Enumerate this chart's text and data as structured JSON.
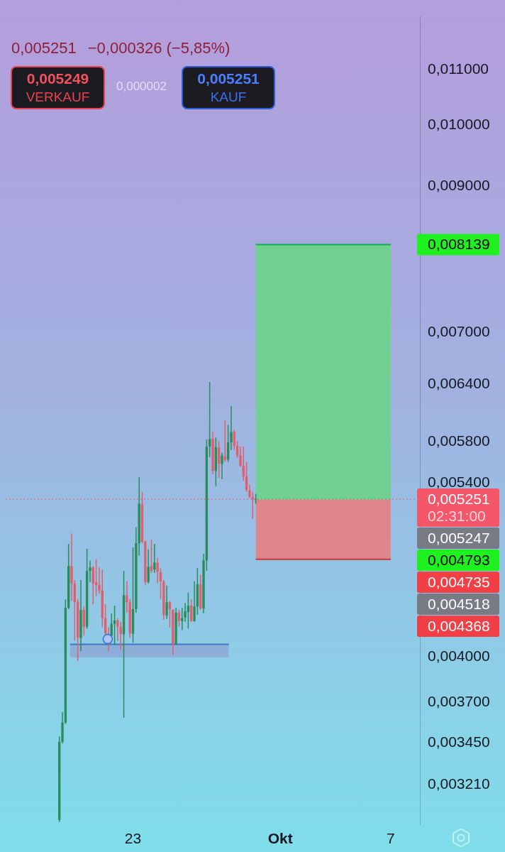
{
  "chart_data": {
    "type": "candlestick",
    "x": [
      "--09-19T00:00",
      "--09-19T04:00",
      "--09-19T08:00",
      "--09-19T12:00",
      "--09-19T16:00",
      "--09-19T20:00",
      "--09-20T00:00",
      "--09-20T04:00",
      "--09-20T08:00",
      "--09-20T12:00",
      "--09-20T16:00",
      "--09-20T20:00",
      "--09-21T00:00",
      "--09-21T04:00",
      "--09-21T08:00",
      "--09-21T12:00",
      "--09-21T16:00",
      "--09-21T20:00",
      "--09-22T00:00",
      "--09-22T04:00",
      "--09-22T08:00",
      "--09-22T12:00",
      "--09-22T16:00",
      "--09-22T20:00",
      "--09-23T00:00",
      "--09-23T04:00",
      "--09-23T08:00",
      "--09-23T12:00",
      "--09-23T16:00",
      "--09-23T20:00",
      "--09-24T00:00",
      "--09-24T04:00",
      "--09-24T08:00",
      "--09-24T12:00",
      "--09-24T16:00",
      "--09-24T20:00",
      "--09-25T00:00",
      "--09-25T04:00",
      "--09-25T08:00",
      "--09-25T12:00",
      "--09-25T16:00",
      "--09-25T20:00",
      "--09-26T00:00",
      "--09-26T04:00",
      "--09-26T08:00",
      "--09-26T12:00",
      "--09-26T16:00",
      "--09-26T20:00",
      "--09-27T00:00",
      "--09-27T04:00",
      "--09-27T08:00",
      "--09-27T12:00",
      "--09-27T16:00",
      "--09-27T20:00",
      "--09-28T00:00",
      "--09-28T04:00",
      "--09-28T08:00",
      "--09-28T12:00",
      "--09-28T16:00",
      "--09-28T20:00",
      "--09-29T00:00",
      "--09-29T04:00",
      "--09-29T08:00",
      "--09-29T12:00",
      "--09-29T16:00"
    ],
    "ohlc": [
      [
        0.003023,
        0.00349,
        0.003012,
        0.003457
      ],
      [
        0.003457,
        0.003639,
        0.003449,
        0.003574
      ],
      [
        0.003574,
        0.004418,
        0.003566,
        0.004355
      ],
      [
        0.004355,
        0.004862,
        0.004345,
        0.00468
      ],
      [
        0.00468,
        0.00495,
        0.004408,
        0.004542
      ],
      [
        0.004542,
        0.004569,
        0.004117,
        0.004397
      ],
      [
        0.004397,
        0.004423,
        0.003976,
        0.004136
      ],
      [
        0.004136,
        0.004569,
        0.004043,
        0.00434
      ],
      [
        0.00434,
        0.004365,
        0.004151,
        0.004216
      ],
      [
        0.004216,
        0.004822,
        0.004201,
        0.004641
      ],
      [
        0.004641,
        0.004725,
        0.004553,
        0.004669
      ],
      [
        0.004669,
        0.00468,
        0.004381,
        0.004542
      ],
      [
        0.004553,
        0.004736,
        0.004445,
        0.004531
      ],
      [
        0.004531,
        0.004669,
        0.004461,
        0.004488
      ],
      [
        0.004488,
        0.004652,
        0.004211,
        0.004278
      ],
      [
        0.004278,
        0.004381,
        0.004151,
        0.004166
      ],
      [
        0.004166,
        0.004211,
        0.004043,
        0.004151
      ],
      [
        0.004151,
        0.004314,
        0.004136,
        0.004237
      ],
      [
        0.004237,
        0.004371,
        0.004087,
        0.004262
      ],
      [
        0.004262,
        0.004278,
        0.004112,
        0.004216
      ],
      [
        0.004216,
        0.004252,
        0.004053,
        0.004161
      ],
      [
        0.004161,
        0.004641,
        0.003604,
        0.00445
      ],
      [
        0.00445,
        0.004558,
        0.004319,
        0.004397
      ],
      [
        0.004397,
        0.004423,
        0.004136,
        0.004166
      ],
      [
        0.004166,
        0.004833,
        0.004102,
        0.004345
      ],
      [
        0.004345,
        0.005004,
        0.004319,
        0.004868
      ],
      [
        0.004868,
        0.005454,
        0.004765,
        0.00521
      ],
      [
        0.005204,
        0.005318,
        0.004868,
        0.00488
      ],
      [
        0.00488,
        0.004891,
        0.004531,
        0.004553
      ],
      [
        0.004553,
        0.004816,
        0.004542,
        0.004674
      ],
      [
        0.00468,
        0.004897,
        0.004624,
        0.004641
      ],
      [
        0.004652,
        0.004862,
        0.004624,
        0.004708
      ],
      [
        0.004708,
        0.004747,
        0.004542,
        0.004635
      ],
      [
        0.00463,
        0.004663,
        0.004423,
        0.004558
      ],
      [
        0.004558,
        0.004569,
        0.004267,
        0.004303
      ],
      [
        0.004298,
        0.004525,
        0.004273,
        0.004397
      ],
      [
        0.004397,
        0.004408,
        0.004211,
        0.004345
      ],
      [
        0.00434,
        0.004345,
        0.004015,
        0.004092
      ],
      [
        0.004092,
        0.004355,
        0.004087,
        0.004319
      ],
      [
        0.004319,
        0.00434,
        0.004216,
        0.004257
      ],
      [
        0.004257,
        0.004355,
        0.004191,
        0.004278
      ],
      [
        0.004283,
        0.004392,
        0.004252,
        0.004329
      ],
      [
        0.004324,
        0.004471,
        0.004201,
        0.004371
      ],
      [
        0.004371,
        0.004418,
        0.004252,
        0.004257
      ],
      [
        0.004257,
        0.004558,
        0.004252,
        0.004365
      ],
      [
        0.004365,
        0.004663,
        0.004303,
        0.004536
      ],
      [
        0.004536,
        0.004613,
        0.00434,
        0.00435
      ],
      [
        0.00435,
        0.004781,
        0.004314,
        0.004725
      ],
      [
        0.004725,
        0.005818,
        0.004641,
        0.005749
      ],
      [
        0.005749,
        0.006426,
        0.005647,
        0.005825
      ],
      [
        0.005825,
        0.005895,
        0.005481,
        0.005513
      ],
      [
        0.005513,
        0.005839,
        0.00537,
        0.005742
      ],
      [
        0.005735,
        0.005804,
        0.005448,
        0.00558
      ],
      [
        0.00558,
        0.005688,
        0.005435,
        0.005661
      ],
      [
        0.005654,
        0.00601,
        0.0056,
        0.00562
      ],
      [
        0.00562,
        0.005967,
        0.0056,
        0.005791
      ],
      [
        0.005791,
        0.006163,
        0.005715,
        0.005895
      ],
      [
        0.005895,
        0.005917,
        0.005715,
        0.005756
      ],
      [
        0.005756,
        0.005804,
        0.00564,
        0.005661
      ],
      [
        0.005661,
        0.005749,
        0.005553,
        0.00556
      ],
      [
        0.00556,
        0.005749,
        0.005422,
        0.005461
      ],
      [
        0.005461,
        0.0056,
        0.005318,
        0.005337
      ],
      [
        0.00533,
        0.005383,
        0.005261,
        0.005273
      ],
      [
        0.005273,
        0.005318,
        0.005075,
        0.005248
      ],
      [
        0.005248,
        0.005299,
        0.00521,
        0.005251
      ]
    ],
    "colors": [
      "#2a8c5c",
      "#2a8c5c",
      "#2a8c5c",
      "#2a8c5c",
      "#e35e6c",
      "#e35e6c",
      "#e35e6c",
      "#2a8c5c",
      "#e35e6c",
      "#2a8c5c",
      "#2a8c5c",
      "#e35e6c",
      "#e35e6c",
      "#e35e6c",
      "#e35e6c",
      "#e35e6c",
      "#e35e6c",
      "#2a8c5c",
      "#2a8c5c",
      "#e35e6c",
      "#e35e6c",
      "#2a8c5c",
      "#e35e6c",
      "#e35e6c",
      "#2a8c5c",
      "#2a8c5c",
      "#2a8c5c",
      "#e35e6c",
      "#e35e6c",
      "#2a8c5c",
      "#e35e6c",
      "#2a8c5c",
      "#e35e6c",
      "#e35e6c",
      "#e35e6c",
      "#2a8c5c",
      "#e35e6c",
      "#e35e6c",
      "#2a8c5c",
      "#e35e6c",
      "#2a8c5c",
      "#2a8c5c",
      "#2a8c5c",
      "#e35e6c",
      "#2a8c5c",
      "#2a8c5c",
      "#e35e6c",
      "#2a8c5c",
      "#2a8c5c",
      "#2a8c5c",
      "#e35e6c",
      "#2a8c5c",
      "#e35e6c",
      "#2a8c5c",
      "#e35e6c",
      "#2a8c5c",
      "#2a8c5c",
      "#e35e6c",
      "#e35e6c",
      "#e35e6c",
      "#e35e6c",
      "#e35e6c",
      "#e35e6c",
      "#e35e6c",
      "#2a8c5c"
    ],
    "series": [
      {
        "type": "line",
        "x": [
          "--09-29T16:00",
          "--10-07T00:00"
        ],
        "values": [
          0.008139,
          0.008139
        ],
        "lower": [
          0.005247,
          0.005247
        ],
        "upper": [
          0.008139,
          0.008139
        ],
        "color": "#0fb04a"
      },
      {
        "type": "line",
        "x": [
          "--09-29T16:00",
          "--10-07T00:00"
        ],
        "values": [
          0.004735,
          0.004735
        ],
        "lower": [
          0.004735,
          0.004735
        ],
        "upper": [
          0.005247,
          0.005247
        ],
        "color": "#c8363f"
      },
      {
        "type": "line",
        "x": [
          "--09-19T14:00",
          "--09-28T05:00"
        ],
        "values": [
          0.00409,
          0.00409
        ],
        "lower": [
          0.004,
          0.004
        ],
        "upper": [
          0.00409,
          0.00409
        ],
        "color": "#3f78c0"
      },
      {
        "type": "scatter",
        "x": [
          "--09-21T15:00"
        ],
        "values": [
          0.004127
        ],
        "color": "#2f6fe0",
        "marker": "circle"
      }
    ],
    "xlim": [
      "--09-16T02:00",
      "--10-08T14:00"
    ],
    "xticks": [
      {
        "value": "--09-23",
        "label": "23"
      },
      {
        "value": "--10-01",
        "label": "Okt"
      },
      {
        "value": "--10-07",
        "label": "7"
      }
    ],
    "ylim": [
      0.003,
      0.01205
    ],
    "yticks": [
      {
        "value": 0.011,
        "label": "0,011000"
      },
      {
        "value": 0.01,
        "label": "0,010000"
      },
      {
        "value": 0.009,
        "label": "0,009000"
      },
      {
        "value": 0.007,
        "label": "0,007000"
      },
      {
        "value": 0.0064,
        "label": "0,006400"
      },
      {
        "value": 0.0058,
        "label": "0,005800"
      },
      {
        "value": 0.0054,
        "label": "0,005400"
      },
      {
        "value": 0.004,
        "label": "0,004000"
      },
      {
        "value": 0.0037,
        "label": "0,003700"
      },
      {
        "value": 0.00345,
        "label": "0,003450"
      },
      {
        "value": 0.00321,
        "label": "0,003210"
      }
    ],
    "log": true,
    "ref_lines": [
      {
        "axis": "y",
        "value": 0.005251,
        "label": "0,005251\n02:31:00",
        "color": "#f4566a",
        "line_style": "dotted"
      }
    ],
    "annotations": [
      "0,005251",
      "−0,000326 (−5,85%)",
      "0,005249",
      "VERKAUF",
      "0,000002",
      "0,005251",
      "KAUF",
      "0,008139",
      "0,005247",
      "0,004793",
      "0,004735",
      "0,004518",
      "0,004368"
    ]
  }
}
